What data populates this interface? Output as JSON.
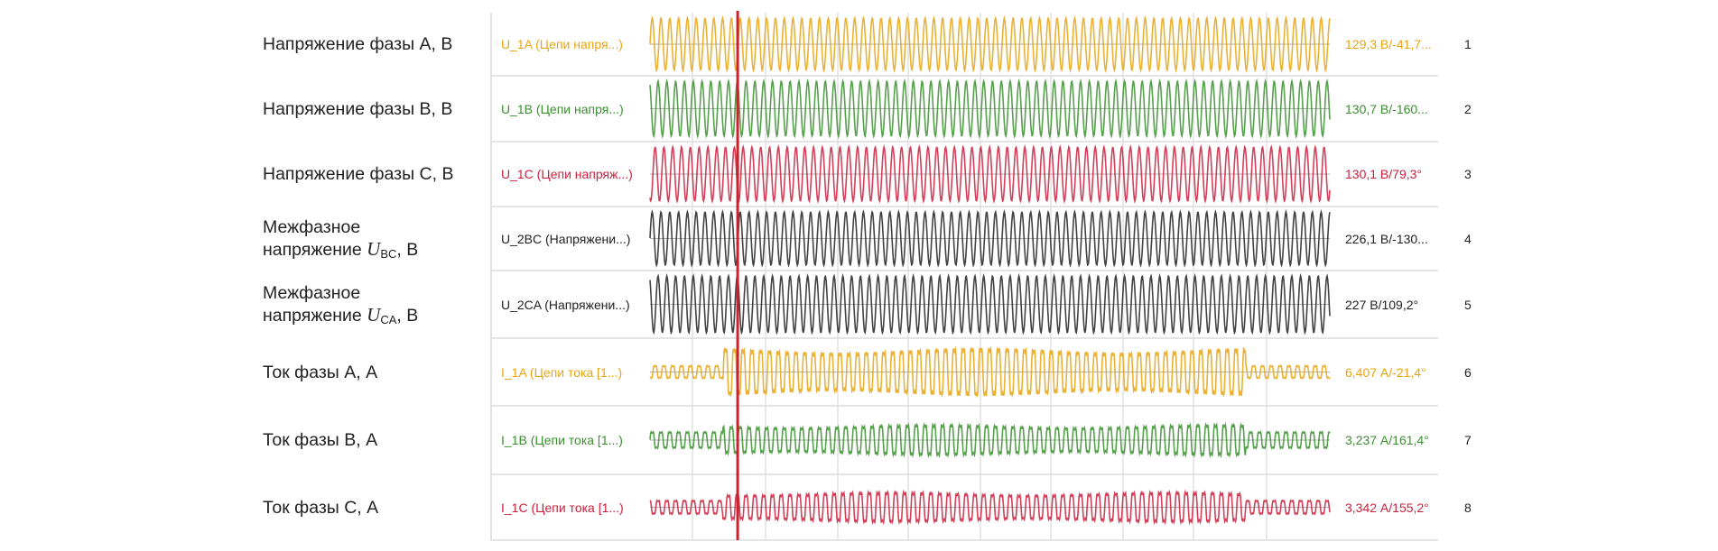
{
  "chart_data": {
    "type": "line",
    "title": "",
    "description": "Oscillogram: stacked waveform channels with a time cursor",
    "xlabel": "",
    "ylabel": "",
    "grid": true,
    "cursor": {
      "color": "#c8232c",
      "position_fraction": 0.109
    },
    "fault_interval_fraction": [
      0.107,
      0.876
    ],
    "channels": [
      {
        "index": "1",
        "label": "Напряжение фазы A, В",
        "label_parts": {
          "pre": "Напряжение фазы A, В",
          "sym": "",
          "sub": "",
          "post": ""
        },
        "name": "U_1A (Цепи напря...)",
        "value": "129,3 В/-41,7...",
        "color": "#e8a412",
        "kind": "voltage",
        "prefault_amp": 1.0,
        "fault_amp": 1.0
      },
      {
        "index": "2",
        "label": "Напряжение фазы B, В",
        "label_parts": {
          "pre": "Напряжение фазы B, В",
          "sym": "",
          "sub": "",
          "post": ""
        },
        "name": "U_1B (Цепи напря...)",
        "value": "130,7 В/-160...",
        "color": "#3a8f2e",
        "kind": "voltage",
        "prefault_amp": 1.0,
        "fault_amp": 1.0
      },
      {
        "index": "3",
        "label": "Напряжение фазы C, В",
        "label_parts": {
          "pre": "Напряжение фазы C, В",
          "sym": "",
          "sub": "",
          "post": ""
        },
        "name": "U_1C (Цепи напряж...)",
        "value": "130,1 В/79,3°",
        "color": "#cc1f3c",
        "kind": "voltage",
        "prefault_amp": 1.0,
        "fault_amp": 1.0
      },
      {
        "index": "4",
        "label": "Межфазное напряжение U_BC, В",
        "label_parts": {
          "line1": "Межфазное",
          "pre": "напряжение ",
          "sym": "U",
          "sub": "BC",
          "post": ", В"
        },
        "name": "U_2BC (Напряжени...)",
        "value": "226,1 В/-130...",
        "color": "#222222",
        "kind": "voltage",
        "prefault_amp": 1.0,
        "fault_amp": 1.0
      },
      {
        "index": "5",
        "label": "Межфазное напряжение U_CA, В",
        "label_parts": {
          "line1": "Межфазное",
          "pre": "напряжение ",
          "sym": "U",
          "sub": "CA",
          "post": ", В"
        },
        "name": "U_2CA (Напряжени...)",
        "value": "227 В/109,2°",
        "color": "#222222",
        "kind": "voltage",
        "prefault_amp": 1.0,
        "fault_amp": 1.0
      },
      {
        "index": "6",
        "label": "Ток фазы A, А",
        "label_parts": {
          "pre": "Ток фазы A, А",
          "sym": "",
          "sub": "",
          "post": ""
        },
        "name": "I_1A (Цепи тока [1...)",
        "value": "6,407 А/-21,4°",
        "color": "#e8a412",
        "kind": "current",
        "prefault_amp": 0.25,
        "fault_amp": 0.95
      },
      {
        "index": "7",
        "label": "Ток фазы B, А",
        "label_parts": {
          "pre": "Ток фазы B, А",
          "sym": "",
          "sub": "",
          "post": ""
        },
        "name": "I_1B (Цепи тока [1...)",
        "value": "3,237 А/161,4°",
        "color": "#3a8f2e",
        "kind": "current",
        "prefault_amp": 0.32,
        "fault_amp": 0.6
      },
      {
        "index": "8",
        "label": "Ток фазы C, А",
        "label_parts": {
          "pre": "Ток фазы C, А",
          "sym": "",
          "sub": "",
          "post": ""
        },
        "name": "I_1C (Цепи тока [1...)",
        "value": "3,342 А/155,2°",
        "color": "#cc1f3c",
        "kind": "current",
        "prefault_amp": 0.28,
        "fault_amp": 0.62
      }
    ]
  }
}
